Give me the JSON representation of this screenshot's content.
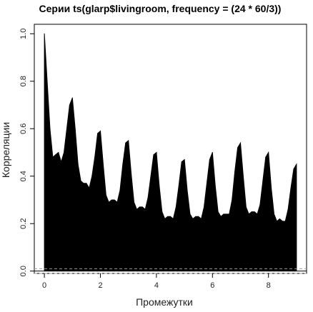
{
  "chart_data": {
    "type": "area",
    "title": "Серии ts(glarp$livingroom, frequency = (24 * 60/3))",
    "xlabel": "Промежутки",
    "ylabel": "Корреляции",
    "xlim": [
      -0.36,
      9.36
    ],
    "ylim": [
      -0.01,
      1.04
    ],
    "x_ticks": [
      0,
      2,
      4,
      6,
      8
    ],
    "x_tick_labels": [
      "0",
      "2",
      "4",
      "6",
      "8"
    ],
    "y_ticks": [
      0.0,
      0.2,
      0.4,
      0.6,
      0.8,
      1.0
    ],
    "y_tick_labels": [
      "0.0",
      "0.2",
      "0.4",
      "0.6",
      "0.8",
      "1.0"
    ],
    "confidence_band": 0.01,
    "fill_color": "#000000",
    "band_color": "#999999",
    "series": [
      {
        "x": [
          0,
          0.1,
          0.2,
          0.3,
          0.4,
          0.5,
          0.6,
          0.7,
          0.8,
          0.9,
          1.0,
          1.1,
          1.2,
          1.3,
          1.4,
          1.5,
          1.6,
          1.7,
          1.8,
          1.9,
          2.0,
          2.1,
          2.2,
          2.3,
          2.4,
          2.5,
          2.6,
          2.7,
          2.8,
          2.9,
          3.0,
          3.1,
          3.2,
          3.3,
          3.4,
          3.5,
          3.6,
          3.7,
          3.8,
          3.9,
          4.0,
          4.1,
          4.2,
          4.3,
          4.4,
          4.5,
          4.6,
          4.7,
          4.8,
          4.9,
          5.0,
          5.1,
          5.2,
          5.3,
          5.4,
          5.5,
          5.6,
          5.7,
          5.8,
          5.9,
          6.0,
          6.1,
          6.2,
          6.3,
          6.4,
          6.5,
          6.6,
          6.7,
          6.8,
          6.9,
          7.0,
          7.1,
          7.2,
          7.3,
          7.4,
          7.5,
          7.6,
          7.7,
          7.8,
          7.9,
          8.0,
          8.1,
          8.2,
          8.3,
          8.4,
          8.5,
          8.6,
          8.7,
          8.8,
          8.9,
          9.0
        ],
        "values": [
          1.0,
          0.8,
          0.6,
          0.48,
          0.49,
          0.5,
          0.46,
          0.5,
          0.6,
          0.7,
          0.73,
          0.6,
          0.45,
          0.38,
          0.37,
          0.37,
          0.35,
          0.4,
          0.48,
          0.58,
          0.59,
          0.45,
          0.32,
          0.29,
          0.3,
          0.3,
          0.29,
          0.34,
          0.45,
          0.54,
          0.55,
          0.41,
          0.29,
          0.26,
          0.27,
          0.27,
          0.26,
          0.31,
          0.4,
          0.49,
          0.5,
          0.36,
          0.25,
          0.22,
          0.23,
          0.23,
          0.22,
          0.27,
          0.36,
          0.46,
          0.47,
          0.34,
          0.24,
          0.22,
          0.23,
          0.23,
          0.22,
          0.27,
          0.37,
          0.47,
          0.5,
          0.36,
          0.25,
          0.23,
          0.24,
          0.24,
          0.24,
          0.3,
          0.42,
          0.52,
          0.54,
          0.4,
          0.27,
          0.24,
          0.25,
          0.25,
          0.24,
          0.28,
          0.38,
          0.48,
          0.5,
          0.35,
          0.24,
          0.21,
          0.22,
          0.21,
          0.21,
          0.26,
          0.35,
          0.43,
          0.45
        ]
      }
    ]
  }
}
